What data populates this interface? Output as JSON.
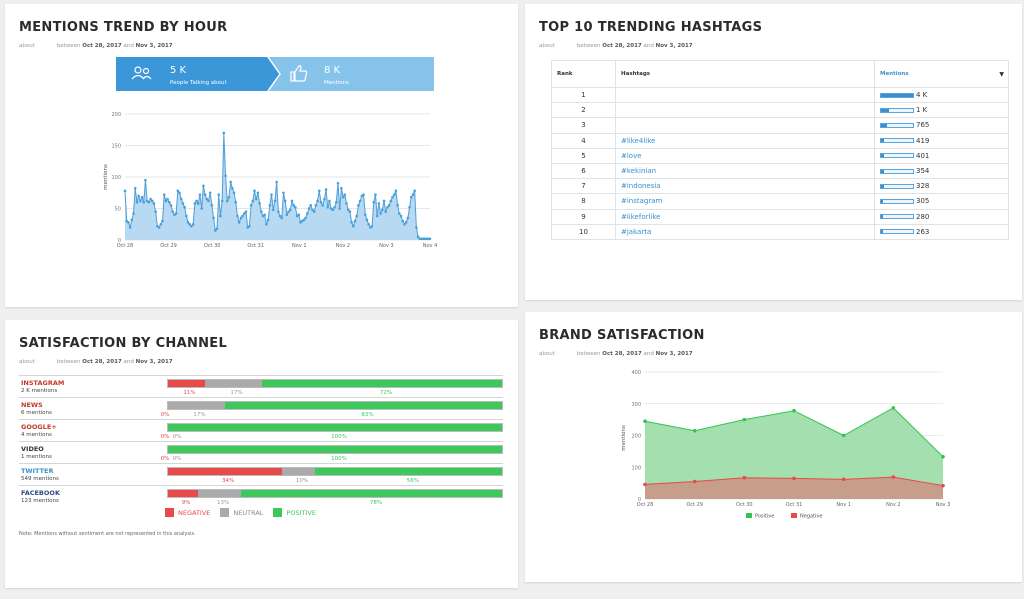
{
  "mentions_trend": {
    "title": "MENTIONS TREND BY HOUR",
    "about": "about",
    "between_prefix": "between",
    "date_from": "Oct 28, 2017",
    "and": "and",
    "date_to": "Nov 3, 2017",
    "stats": [
      {
        "value": "5 K",
        "label": "People Talking about",
        "icon": "people-icon",
        "color": "#3b97d8"
      },
      {
        "value": "8 K",
        "label": "Mentions",
        "icon": "thumbs-up-icon",
        "color": "#86c3ea"
      }
    ]
  },
  "hashtags": {
    "title": "TOP 10 TRENDING HASHTAGS",
    "about": "about",
    "between_prefix": "between",
    "date_from": "Oct 28, 2017",
    "and": "and",
    "date_to": "Nov 3, 2017",
    "headers": {
      "rank": "Rank",
      "hashtags": "Hashtags",
      "mentions": "Mentions"
    },
    "max": 4000,
    "rows": [
      {
        "rank": "1",
        "tag": "",
        "value": 4000,
        "label": "4 K"
      },
      {
        "rank": "2",
        "tag": "",
        "value": 1000,
        "label": "1 K"
      },
      {
        "rank": "3",
        "tag": "",
        "value": 765,
        "label": "765"
      },
      {
        "rank": "4",
        "tag": "#like4like",
        "value": 419,
        "label": "419"
      },
      {
        "rank": "5",
        "tag": "#love",
        "value": 401,
        "label": "401"
      },
      {
        "rank": "6",
        "tag": "#kekinian",
        "value": 354,
        "label": "354"
      },
      {
        "rank": "7",
        "tag": "#indonesia",
        "value": 328,
        "label": "328"
      },
      {
        "rank": "8",
        "tag": "#instagram",
        "value": 305,
        "label": "305"
      },
      {
        "rank": "9",
        "tag": "#likeforlike",
        "value": 280,
        "label": "280"
      },
      {
        "rank": "10",
        "tag": "#jakarta",
        "value": 263,
        "label": "263"
      }
    ]
  },
  "satisfaction": {
    "title": "SATISFACTION BY CHANNEL",
    "about": "about",
    "between_prefix": "between",
    "date_from": "Oct 28, 2017",
    "and": "and",
    "date_to": "Nov 3, 2017",
    "colors": {
      "negative": "#e84a4a",
      "neutral": "#aaaaaa",
      "positive": "#3cc85a"
    },
    "legend": {
      "negative": "NEGATIVE",
      "neutral": "NEUTRAL",
      "positive": "POSITIVE"
    },
    "note": "Note: Mentions without sentiment are not represented in this analysis."
  },
  "brand": {
    "title": "BRAND SATISFACTION",
    "about": "about",
    "between_prefix": "between",
    "date_from": "Oct 28, 2017",
    "and": "and",
    "date_to": "Nov 3, 2017"
  },
  "chart_data": [
    {
      "type": "area",
      "ylabel": "mentions",
      "ylim": [
        0,
        200
      ],
      "yticks": [
        "0",
        "50",
        "100",
        "150",
        "200"
      ],
      "xticks": [
        "Oct 28",
        "Oct 29",
        "Oct 30",
        "Oct 31",
        "Nov 1",
        "Nov 2",
        "Nov 3",
        "Nov 4"
      ],
      "color": "#4b9fd9",
      "fill": "#b7d9f2",
      "values": [
        78,
        30,
        28,
        20,
        32,
        42,
        82,
        60,
        70,
        62,
        68,
        60,
        95,
        62,
        60,
        65,
        62,
        58,
        45,
        22,
        20,
        25,
        30,
        72,
        62,
        65,
        60,
        55,
        45,
        40,
        42,
        78,
        75,
        65,
        58,
        52,
        38,
        28,
        25,
        22,
        25,
        58,
        62,
        58,
        72,
        50,
        86,
        72,
        65,
        62,
        75,
        55,
        35,
        15,
        18,
        72,
        38,
        62,
        170,
        102,
        62,
        68,
        92,
        82,
        75,
        60,
        38,
        28,
        35,
        38,
        42,
        45,
        20,
        22,
        55,
        62,
        78,
        65,
        75,
        58,
        45,
        38,
        40,
        25,
        32,
        55,
        72,
        48,
        62,
        92,
        45,
        38,
        35,
        75,
        62,
        40,
        45,
        48,
        62,
        55,
        52,
        38,
        40,
        28,
        30,
        32,
        35,
        42,
        50,
        55,
        48,
        45,
        55,
        62,
        78,
        60,
        55,
        65,
        80,
        52,
        62,
        50,
        48,
        52,
        60,
        90,
        50,
        82,
        68,
        72,
        58,
        48,
        45,
        28,
        22,
        30,
        38,
        55,
        62,
        70,
        72,
        40,
        32,
        25,
        20,
        22,
        60,
        72,
        38,
        58,
        42,
        48,
        62,
        45,
        52,
        55,
        62,
        68,
        72,
        78,
        55,
        42,
        38,
        30,
        25,
        28,
        35,
        52,
        68,
        72,
        78,
        20,
        5,
        2,
        2,
        2,
        2,
        2,
        2,
        2
      ]
    },
    {
      "type": "bar",
      "stacked": true,
      "orientation": "horizontal",
      "categories": [
        "INSTAGRAM",
        "NEWS",
        "GOOGLE+",
        "VIDEO",
        "TWITTER",
        "FACEBOOK"
      ],
      "counts": [
        "2 K mentions",
        "6 mentions",
        "4 mentions",
        "1 mentions",
        "549 mentions",
        "123 mentions"
      ],
      "name_colors": [
        "#c0392b",
        "#c0392b",
        "#c0392b",
        "#333333",
        "#3b8fcc",
        "#2c4a7f"
      ],
      "series": [
        {
          "name": "NEGATIVE",
          "values": [
            11,
            0,
            0,
            0,
            34,
            9
          ]
        },
        {
          "name": "NEUTRAL",
          "values": [
            17,
            17,
            0,
            0,
            10,
            13
          ]
        },
        {
          "name": "POSITIVE",
          "values": [
            72,
            83,
            100,
            100,
            56,
            78
          ]
        }
      ],
      "labels": [
        [
          "11%",
          "17%",
          "72%"
        ],
        [
          "0%",
          "17%",
          "83%"
        ],
        [
          "0%",
          "0%",
          "100%"
        ],
        [
          "0%",
          "0%",
          "100%"
        ],
        [
          "34%",
          "10%",
          "56%"
        ],
        [
          "9%",
          "13%",
          "78%"
        ]
      ]
    },
    {
      "type": "area",
      "ylabel": "mentions",
      "ylim": [
        0,
        400
      ],
      "yticks": [
        "0",
        "100",
        "200",
        "300",
        "400"
      ],
      "categories": [
        "Oct 28",
        "Oct 29",
        "Oct 30",
        "Oct 31",
        "Nov 1",
        "Nov 2",
        "Nov 3"
      ],
      "series": [
        {
          "name": "Positive",
          "color": "#33c44f",
          "fill": "#9fddab",
          "values": [
            245,
            215,
            250,
            278,
            200,
            287,
            133
          ]
        },
        {
          "name": "Negative",
          "color": "#e84a4a",
          "fill": "#c99a88",
          "values": [
            46,
            55,
            67,
            65,
            62,
            69,
            42
          ]
        }
      ]
    }
  ]
}
